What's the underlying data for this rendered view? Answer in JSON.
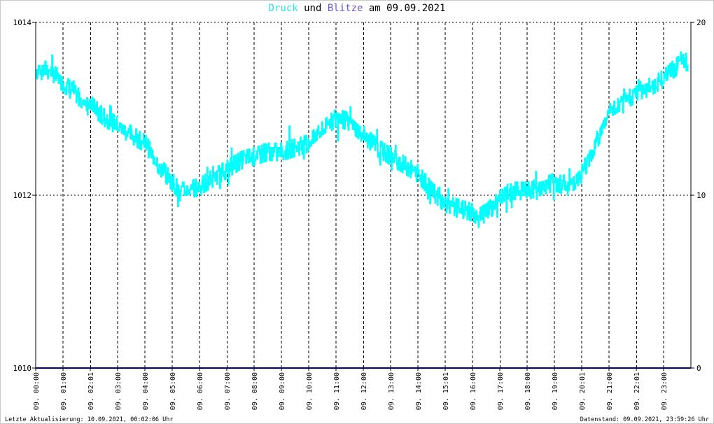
{
  "title": {
    "part1": "Druck",
    "part2": "und",
    "part3": "Blitze",
    "part4": "am 09.09.2021"
  },
  "colors": {
    "pressure": "#00ffff",
    "lightning": "#000080",
    "grid": "#000000",
    "title_druck": "#22e8ec",
    "title_blitze": "#6a5acd"
  },
  "footer": {
    "left": "Letzte Aktualisierung: 10.09.2021, 00:02:06 Uhr",
    "right": "Datenstand: 09.09.2021, 23:59:26 Uhr"
  },
  "chart_data": {
    "type": "line",
    "title": "Druck und Blitze am 09.09.2021",
    "xlabel": "",
    "ylabel": "",
    "ylim": [
      1010,
      1014
    ],
    "y2lim": [
      0,
      20
    ],
    "yticks": [
      "1010",
      "1012",
      "1014"
    ],
    "y2ticks": [
      "0",
      "10",
      "20"
    ],
    "grid": true,
    "x_tick_labels": [
      "09. 00:00",
      "09. 01:00",
      "09. 02:01",
      "09. 03:00",
      "09. 04:00",
      "09. 05:00",
      "09. 06:00",
      "09. 07:00",
      "09. 08:00",
      "09. 09:00",
      "09. 10:00",
      "09. 11:00",
      "09. 12:00",
      "09. 13:00",
      "09. 14:00",
      "09. 15:01",
      "09. 16:00",
      "09. 17:00",
      "09. 18:00",
      "09. 19:00",
      "09. 20:01",
      "09. 21:00",
      "09. 22:01",
      "09. 23:00"
    ],
    "series": [
      {
        "axis": "left",
        "x_hours": [
          0,
          0.5,
          1,
          1.5,
          2,
          2.5,
          3,
          3.5,
          4,
          4.5,
          5,
          5.25,
          5.5,
          6,
          6.5,
          7,
          7.5,
          8,
          8.5,
          9,
          9.5,
          10,
          10.5,
          11,
          11.5,
          12,
          12.5,
          13,
          13.5,
          14,
          14.5,
          15,
          15.5,
          16,
          16.25,
          16.5,
          17,
          17.5,
          18,
          18.5,
          19,
          19.5,
          20,
          20.5,
          21,
          21.5,
          22,
          22.5,
          23,
          23.5,
          23.9
        ],
        "values": [
          1013.45,
          1013.45,
          1013.3,
          1013.15,
          1013.05,
          1012.9,
          1012.8,
          1012.7,
          1012.6,
          1012.35,
          1012.15,
          1012.05,
          1012.05,
          1012.1,
          1012.2,
          1012.3,
          1012.4,
          1012.45,
          1012.5,
          1012.5,
          1012.55,
          1012.6,
          1012.75,
          1012.9,
          1012.85,
          1012.7,
          1012.55,
          1012.45,
          1012.35,
          1012.25,
          1012.05,
          1011.9,
          1011.85,
          1011.8,
          1011.75,
          1011.8,
          1011.95,
          1012.05,
          1012.05,
          1012.1,
          1012.15,
          1012.1,
          1012.25,
          1012.6,
          1012.95,
          1013.05,
          1013.2,
          1013.25,
          1013.35,
          1013.5,
          1013.55
        ]
      },
      {
        "axis": "right",
        "x_hours": [
          0,
          24
        ],
        "values": [
          0,
          0
        ]
      }
    ]
  }
}
